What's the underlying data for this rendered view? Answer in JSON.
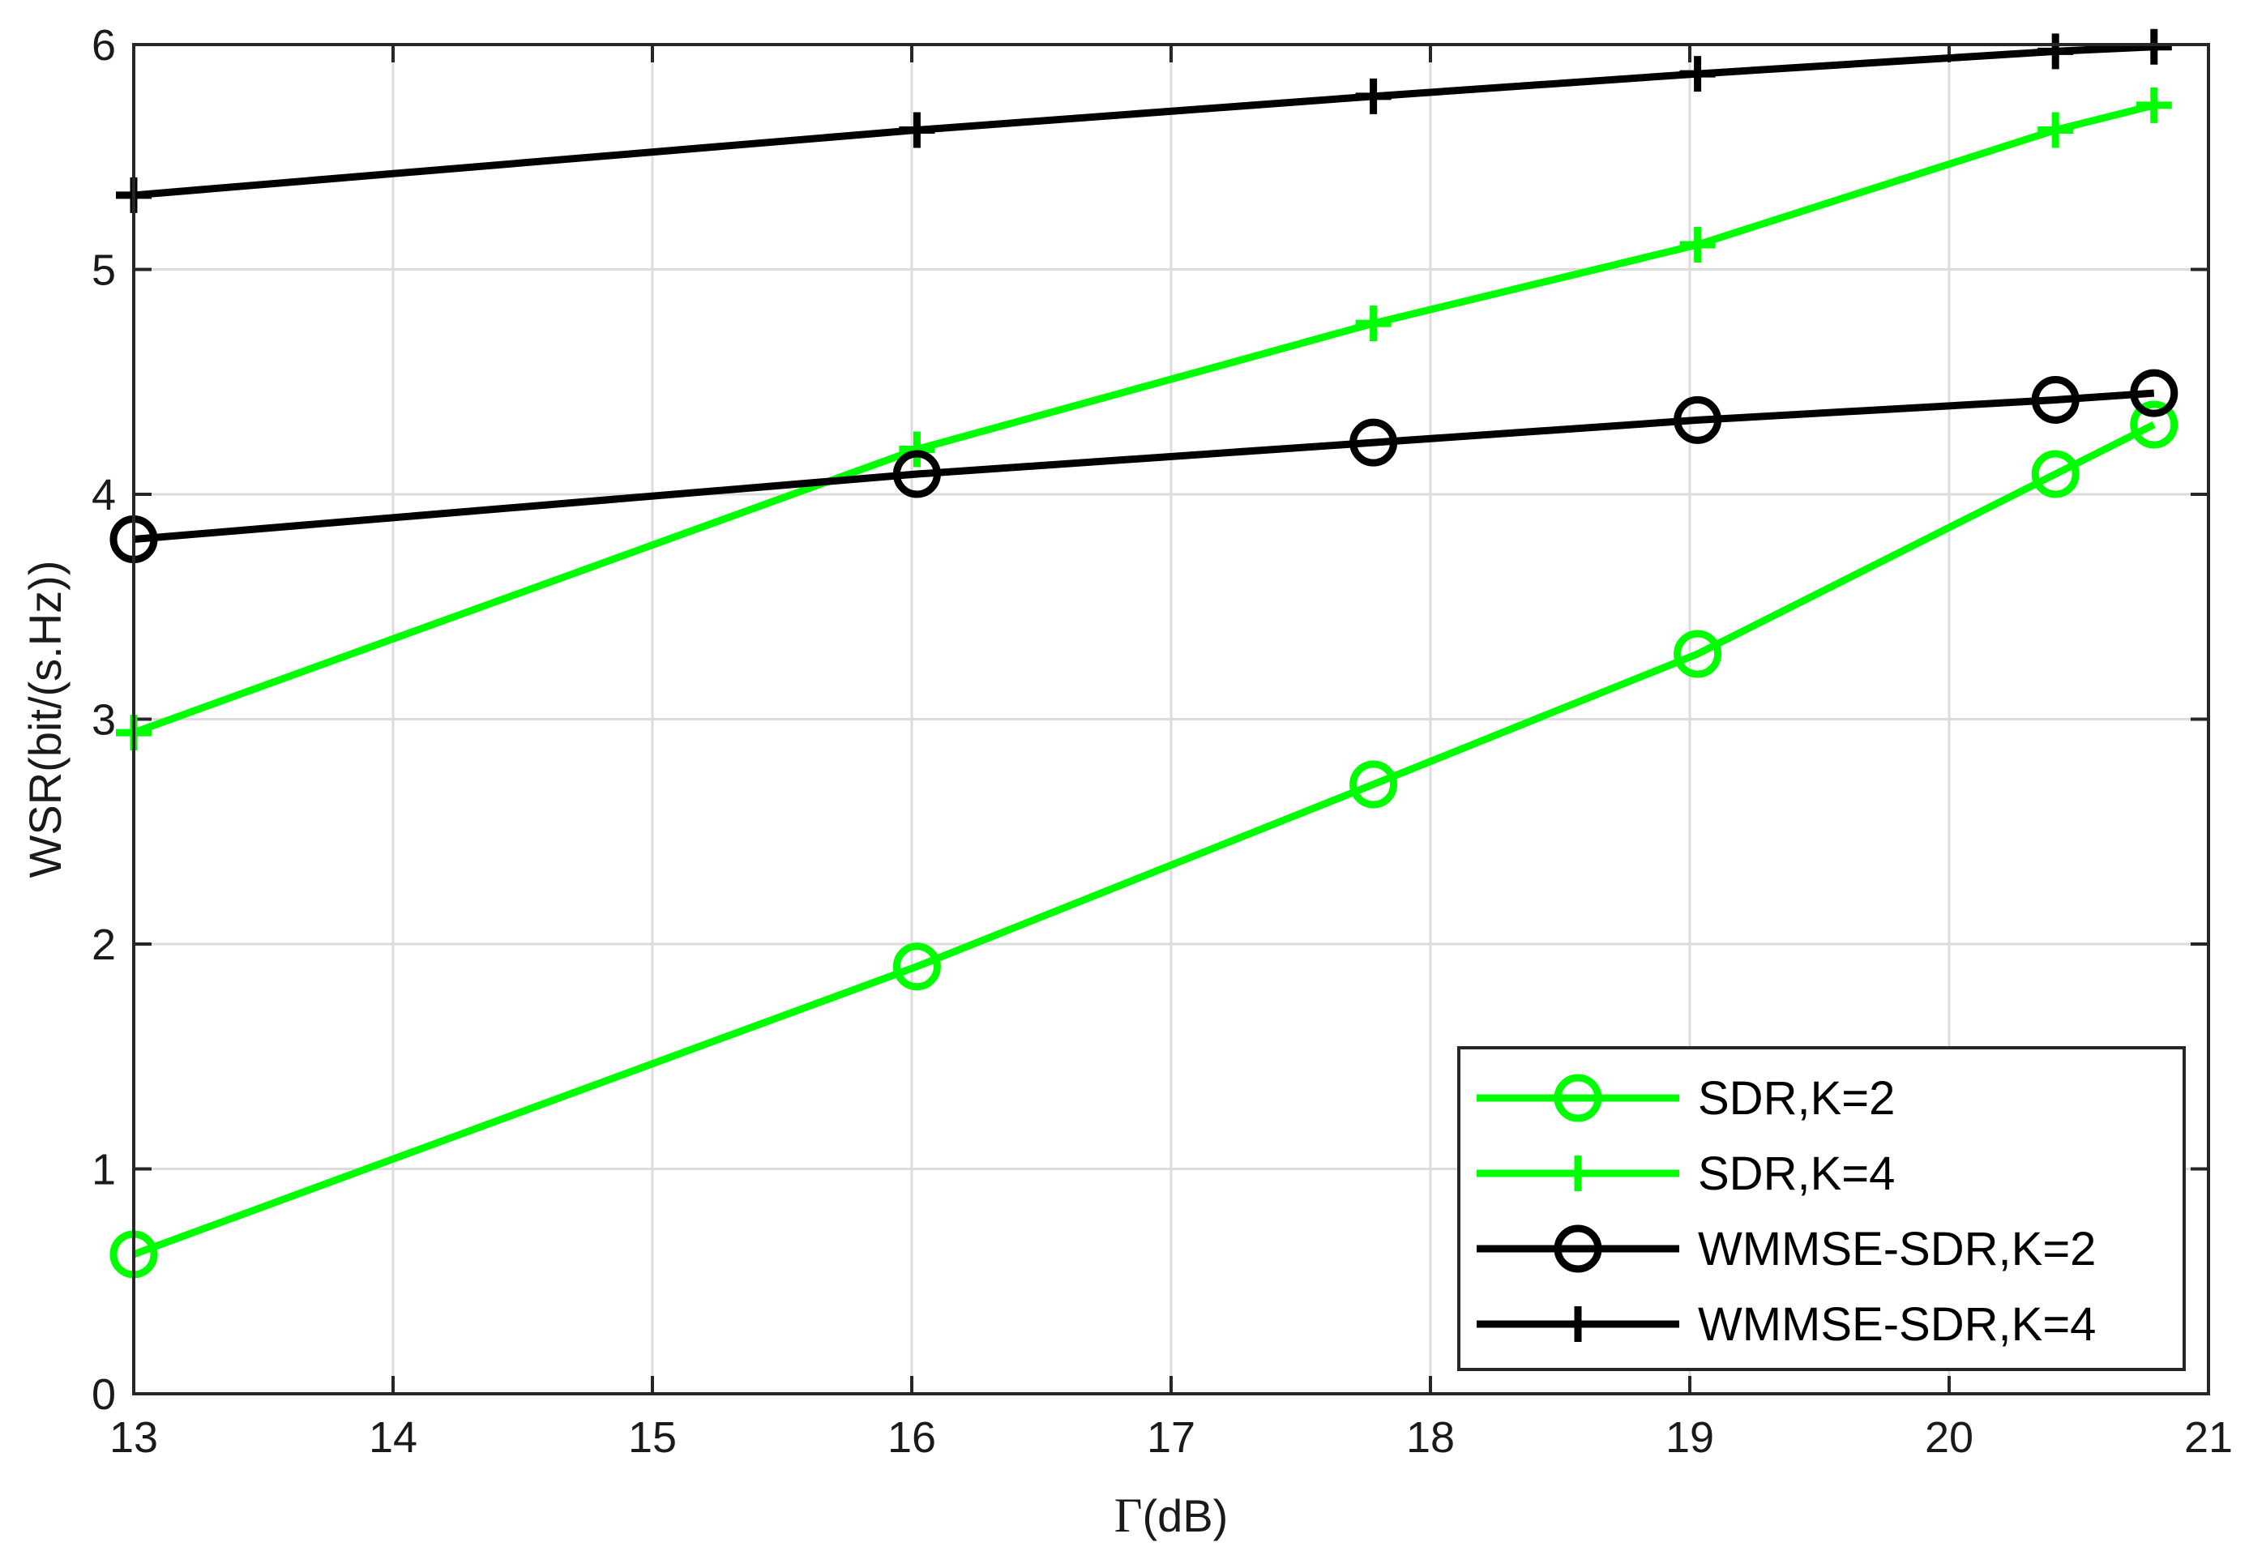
{
  "chart_data": {
    "type": "line",
    "xlabel_symbol": "Γ",
    "xlabel_unit": "(dB)",
    "ylabel": "WSR(bit/(s.Hz))",
    "xlim": [
      13,
      21
    ],
    "ylim": [
      0,
      6
    ],
    "xticks": [
      13,
      14,
      15,
      16,
      17,
      18,
      19,
      20,
      21
    ],
    "yticks": [
      0,
      1,
      2,
      3,
      4,
      5,
      6
    ],
    "grid": true,
    "legend_position": "bottom-right",
    "x": [
      13,
      16.02,
      17.78,
      19.03,
      20.41,
      20.79
    ],
    "series": [
      {
        "name": "SDR,K=2",
        "color": "#00ff00",
        "marker": "circle",
        "values": [
          0.62,
          1.9,
          2.71,
          3.29,
          4.09,
          4.31
        ]
      },
      {
        "name": "SDR,K=4",
        "color": "#00ff00",
        "marker": "plus",
        "values": [
          2.94,
          4.2,
          4.76,
          5.11,
          5.62,
          5.73
        ]
      },
      {
        "name": "WMMSE-SDR,K=2",
        "color": "#000000",
        "marker": "circle",
        "values": [
          3.8,
          4.09,
          4.23,
          4.33,
          4.42,
          4.45
        ]
      },
      {
        "name": "WMMSE-SDR,K=4",
        "color": "#000000",
        "marker": "plus",
        "values": [
          5.33,
          5.62,
          5.77,
          5.87,
          5.97,
          5.99
        ]
      }
    ]
  }
}
